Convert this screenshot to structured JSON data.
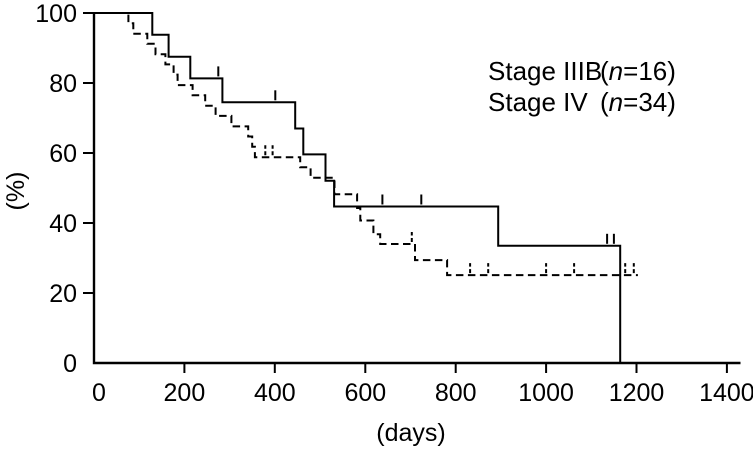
{
  "figure": {
    "background": "#ffffff",
    "ink_color": "#000000"
  },
  "legend": {
    "items": [
      {
        "stage": "Stage IIIB",
        "open": "(",
        "n_symbol": "n",
        "count": "=16)"
      },
      {
        "stage": "Stage IV",
        "open": "(",
        "n_symbol": "n",
        "count": "=34)"
      }
    ]
  },
  "chart_data": {
    "type": "line",
    "subtype": "kaplan-meier-step-survival",
    "title": "",
    "xlabel": "(days)",
    "ylabel": "(%)",
    "xlim": [
      0,
      1430
    ],
    "ylim": [
      0,
      100
    ],
    "x_ticks": [
      0,
      200,
      400,
      600,
      800,
      1000,
      1200,
      1400
    ],
    "y_ticks": [
      0,
      20,
      40,
      60,
      80,
      100
    ],
    "grid": false,
    "legend_position": "upper-right",
    "series": [
      {
        "id": "stage-iiib",
        "name": "Stage IIIB (n=16)",
        "n": 16,
        "line_style": "solid",
        "color": "#000000",
        "start": [
          0,
          100
        ],
        "steps": [
          [
            129,
            93.8
          ],
          [
            165,
            87.5
          ],
          [
            213,
            81.3
          ],
          [
            284,
            74.5
          ],
          [
            445,
            67
          ],
          [
            463,
            59.6
          ],
          [
            512,
            52.1
          ],
          [
            531,
            44.7
          ],
          [
            894,
            33.5
          ],
          [
            1164,
            0
          ]
        ],
        "censor_marks": [
          [
            275,
            81.3
          ],
          [
            401,
            74.5
          ],
          [
            638,
            44.7
          ],
          [
            724,
            44.7
          ],
          [
            1135,
            33.5
          ],
          [
            1150,
            33.5
          ]
        ],
        "end_day": 1164
      },
      {
        "id": "stage-iv",
        "name": "Stage IV (n=34)",
        "n": 34,
        "line_style": "dashed",
        "color": "#000000",
        "start": [
          0,
          100
        ],
        "steps": [
          [
            76,
            97.1
          ],
          [
            87,
            94.1
          ],
          [
            118,
            91.2
          ],
          [
            136,
            88.2
          ],
          [
            158,
            85.3
          ],
          [
            176,
            82.4
          ],
          [
            185,
            79.4
          ],
          [
            218,
            76.5
          ],
          [
            246,
            73.5
          ],
          [
            269,
            70.6
          ],
          [
            304,
            67.6
          ],
          [
            341,
            64.7
          ],
          [
            350,
            61.8
          ],
          [
            356,
            58.8
          ],
          [
            456,
            55.9
          ],
          [
            479,
            52.9
          ],
          [
            532,
            48.2
          ],
          [
            582,
            44.3
          ],
          [
            589,
            40.7
          ],
          [
            618,
            36.8
          ],
          [
            633,
            34
          ],
          [
            710,
            29.4
          ],
          [
            781,
            25.1
          ]
        ],
        "censor_marks": [
          [
            379,
            58.8
          ],
          [
            395,
            58.8
          ],
          [
            703,
            34
          ],
          [
            832,
            25.1
          ],
          [
            872,
            25.1
          ],
          [
            1000,
            25.1
          ],
          [
            1062,
            25.1
          ],
          [
            1175,
            25.1
          ],
          [
            1194,
            25.1
          ]
        ],
        "end_day": 1203
      }
    ]
  }
}
